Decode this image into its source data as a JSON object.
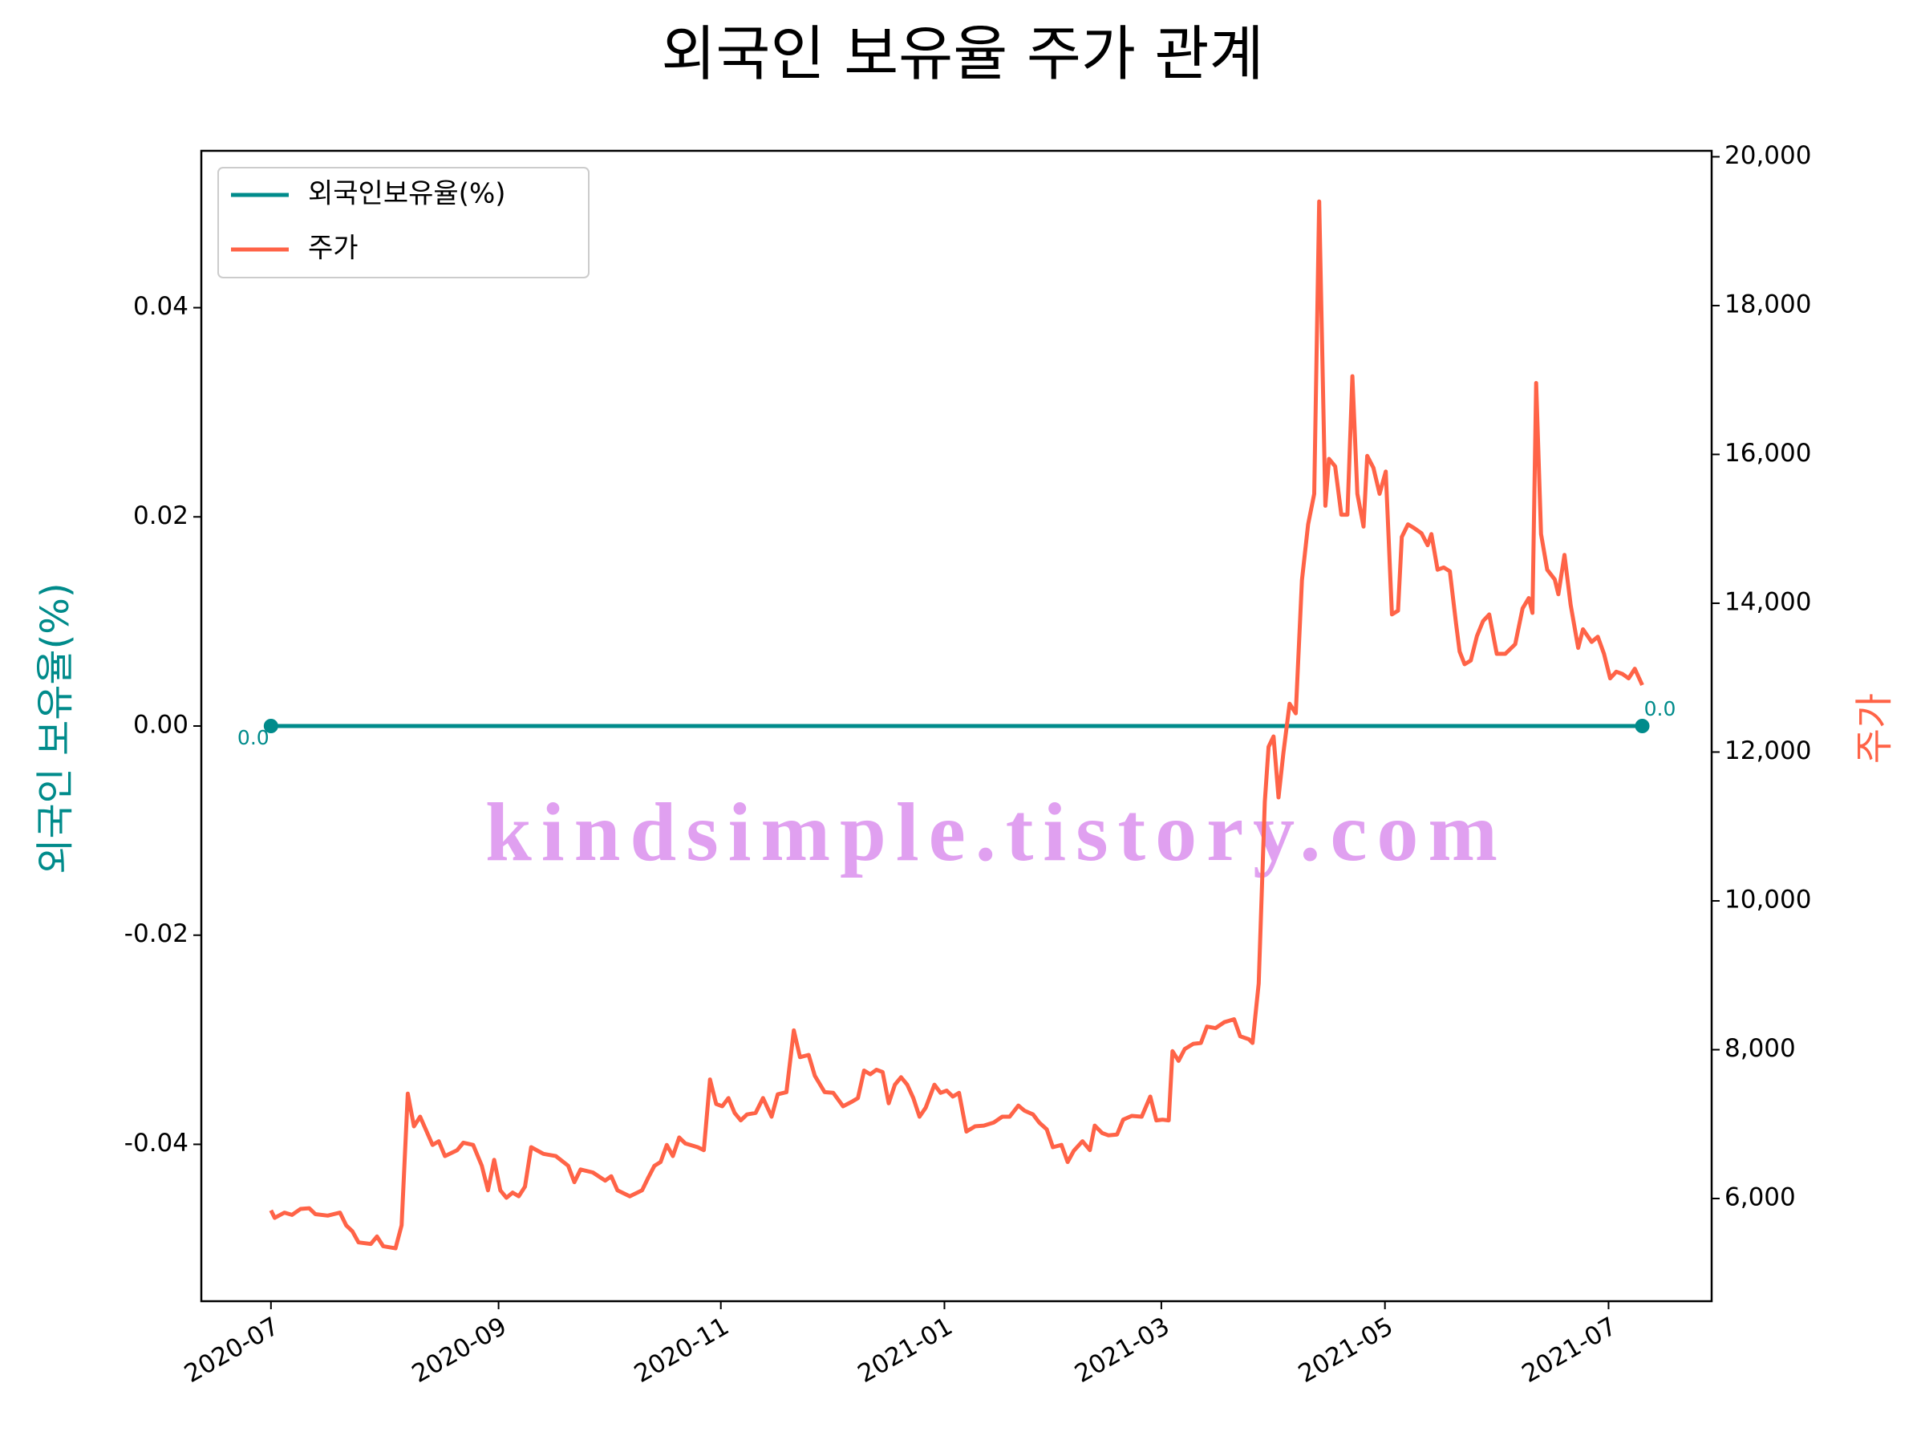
{
  "chart_data": {
    "type": "line",
    "title": "외국인 보유율 주가 관계",
    "ylabel": "외국인 보유율(%)",
    "y2label": "주가",
    "watermark": "kindsimple.tistory.com",
    "legend": "upper left",
    "xlim": [
      2020.445,
      2021.573
    ],
    "xticks": [
      {
        "value": 2020.497,
        "label": "2020-07"
      },
      {
        "value": 2020.667,
        "label": "2020-09"
      },
      {
        "value": 2020.833,
        "label": "2020-11"
      },
      {
        "value": 2021.0,
        "label": "2021-01"
      },
      {
        "value": 2021.162,
        "label": "2021-03"
      },
      {
        "value": 2021.329,
        "label": "2021-05"
      },
      {
        "value": 2021.496,
        "label": "2021-07"
      }
    ],
    "ylim": [
      -0.055,
      0.055
    ],
    "yticks": [
      -0.04,
      -0.02,
      {
        "value": 0,
        "label": "0.00"
      },
      0.02,
      0.04
    ],
    "y2lim": [
      4620,
      20080
    ],
    "y2ticks": [
      {
        "value": 6000,
        "label": "6,000"
      },
      {
        "value": 8000,
        "label": "8,000"
      },
      {
        "value": 10000,
        "label": "10,000"
      },
      {
        "value": 12000,
        "label": "12,000"
      },
      {
        "value": 14000,
        "label": "14,000"
      },
      {
        "value": 16000,
        "label": "16,000"
      },
      {
        "value": 18000,
        "label": "18,000"
      },
      {
        "value": 20000,
        "label": "20,000"
      }
    ],
    "x": [
      2020.497,
      2020.4998,
      2020.5071,
      2020.5127,
      2020.5191,
      2020.5256,
      2020.5302,
      2020.5394,
      2020.5486,
      2020.5532,
      2020.5578,
      2020.5624,
      2020.5716,
      2020.5762,
      2020.5808,
      2020.59,
      2020.5946,
      2020.5992,
      2020.6038,
      2020.6084,
      2020.6177,
      2020.6223,
      2020.6269,
      2020.6361,
      2020.6407,
      2020.648,
      2020.6545,
      2020.6591,
      2020.6637,
      2020.6683,
      2020.6729,
      2020.6775,
      2020.6821,
      2020.6867,
      2020.6913,
      2020.7005,
      2020.7098,
      2020.719,
      2020.7236,
      2020.7282,
      2020.7374,
      2020.7466,
      2020.7512,
      2020.7558,
      2020.765,
      2020.7742,
      2020.7788,
      2020.7834,
      2020.788,
      2020.7926,
      2020.7972,
      2020.8019,
      2020.8065,
      2020.8157,
      2020.8203,
      2020.8249,
      2020.8295,
      2020.8341,
      2020.8387,
      2020.8433,
      2020.8479,
      2020.8525,
      2020.859,
      2020.8645,
      2020.8709,
      2020.8755,
      2020.882,
      2020.8875,
      2020.8921,
      2020.8986,
      2020.9032,
      2020.9105,
      2020.917,
      2020.9243,
      2020.9308,
      2020.9354,
      2020.94,
      2020.9446,
      2020.9492,
      2020.9538,
      2020.9584,
      2020.963,
      2020.9676,
      2020.9722,
      2020.9768,
      2020.9814,
      2020.986,
      2020.9925,
      2020.9971,
      2021.0017,
      2021.0063,
      2021.0109,
      2021.0164,
      2021.0229,
      2021.0294,
      2021.0367,
      2021.0432,
      2021.0487,
      2021.0552,
      2021.0598,
      2021.0662,
      2021.0708,
      2021.0764,
      2021.081,
      2021.0874,
      2021.092,
      2021.0966,
      2021.1031,
      2021.1086,
      2021.1123,
      2021.1178,
      2021.1224,
      2021.1289,
      2021.1335,
      2021.1399,
      2021.1473,
      2021.1537,
      2021.1583,
      2021.1629,
      2021.1675,
      2021.1703,
      2021.1749,
      2021.1795,
      2021.1859,
      2021.1915,
      2021.1961,
      2021.2025,
      2021.209,
      2021.2163,
      2021.2209,
      2021.2274,
      2021.2301,
      2021.2347,
      2021.2393,
      2021.2421,
      2021.2458,
      2021.2495,
      2021.2532,
      2021.2578,
      2021.2624,
      2021.267,
      2021.2716,
      2021.2762,
      2021.2799,
      2021.2845,
      2021.2872,
      2021.2918,
      2021.2964,
      2021.301,
      2021.3047,
      2021.3084,
      2021.313,
      2021.3158,
      2021.3204,
      2021.325,
      2021.3296,
      2021.3342,
      2021.3388,
      2021.3416,
      2021.3462,
      2021.3508,
      2021.3563,
      2021.3609,
      2021.3637,
      2021.3683,
      2021.3729,
      2021.3775,
      2021.3821,
      2021.3848,
      2021.3885,
      2021.3931,
      2021.3977,
      2021.4023,
      2021.4069,
      2021.4125,
      2021.4189,
      2021.4263,
      2021.4318,
      2021.4364,
      2021.4392,
      2021.4419,
      2021.4456,
      2021.4502,
      2021.4558,
      2021.4585,
      2021.4631,
      2021.4677,
      2021.4733,
      2021.4769,
      2021.4834,
      2021.488,
      2021.4926,
      2021.4972,
      2021.5018,
      2021.5064,
      2021.511,
      2021.5156,
      2021.5212
    ],
    "series": [
      {
        "name": "외국인보유율(%)",
        "color": "#008b8b",
        "axis": "y",
        "markers": true,
        "x": [
          2020.497,
          2021.5212
        ],
        "values": [
          0,
          0
        ],
        "value_labels": [
          "0.0",
          "0.0"
        ]
      },
      {
        "name": "주가",
        "color": "#ff6347",
        "axis": "y2",
        "markers": false,
        "values": [
          5840,
          5740,
          5810,
          5780,
          5860,
          5870,
          5790,
          5770,
          5810,
          5640,
          5560,
          5410,
          5390,
          5490,
          5360,
          5330,
          5640,
          7410,
          6970,
          7100,
          6720,
          6770,
          6570,
          6650,
          6750,
          6720,
          6440,
          6110,
          6520,
          6110,
          6010,
          6080,
          6030,
          6160,
          6690,
          6600,
          6570,
          6440,
          6220,
          6390,
          6350,
          6240,
          6300,
          6110,
          6030,
          6110,
          6280,
          6440,
          6490,
          6720,
          6570,
          6820,
          6740,
          6690,
          6650,
          7600,
          7270,
          7240,
          7350,
          7150,
          7050,
          7130,
          7150,
          7350,
          7100,
          7400,
          7430,
          8260,
          7900,
          7930,
          7650,
          7430,
          7420,
          7240,
          7300,
          7350,
          7720,
          7670,
          7730,
          7700,
          7280,
          7530,
          7630,
          7530,
          7350,
          7100,
          7220,
          7530,
          7420,
          7450,
          7370,
          7420,
          6900,
          6970,
          6980,
          7020,
          7100,
          7100,
          7250,
          7180,
          7130,
          7020,
          6930,
          6690,
          6720,
          6490,
          6640,
          6770,
          6650,
          6980,
          6880,
          6850,
          6860,
          7060,
          7110,
          7100,
          7370,
          7050,
          7060,
          7050,
          7980,
          7850,
          8010,
          8080,
          8090,
          8310,
          8290,
          8370,
          8410,
          8180,
          8140,
          8090,
          8890,
          11330,
          12070,
          12210,
          11390,
          11990,
          12650,
          12520,
          14310,
          15060,
          15470,
          19400,
          15310,
          15940,
          15840,
          15190,
          15190,
          17050,
          15470,
          15030,
          15980,
          15820,
          15470,
          15770,
          13850,
          13900,
          14890,
          15060,
          15010,
          14940,
          14780,
          14930,
          14450,
          14480,
          14430,
          13730,
          13350,
          13180,
          13230,
          13560,
          13760,
          13850,
          13320,
          13320,
          13450,
          13930,
          14070,
          13870,
          16960,
          14930,
          14450,
          14320,
          14120,
          14650,
          13980,
          13400,
          13650,
          13480,
          13550,
          13320,
          12990,
          13080,
          13050,
          12990,
          13120,
          12900
        ]
      }
    ]
  }
}
